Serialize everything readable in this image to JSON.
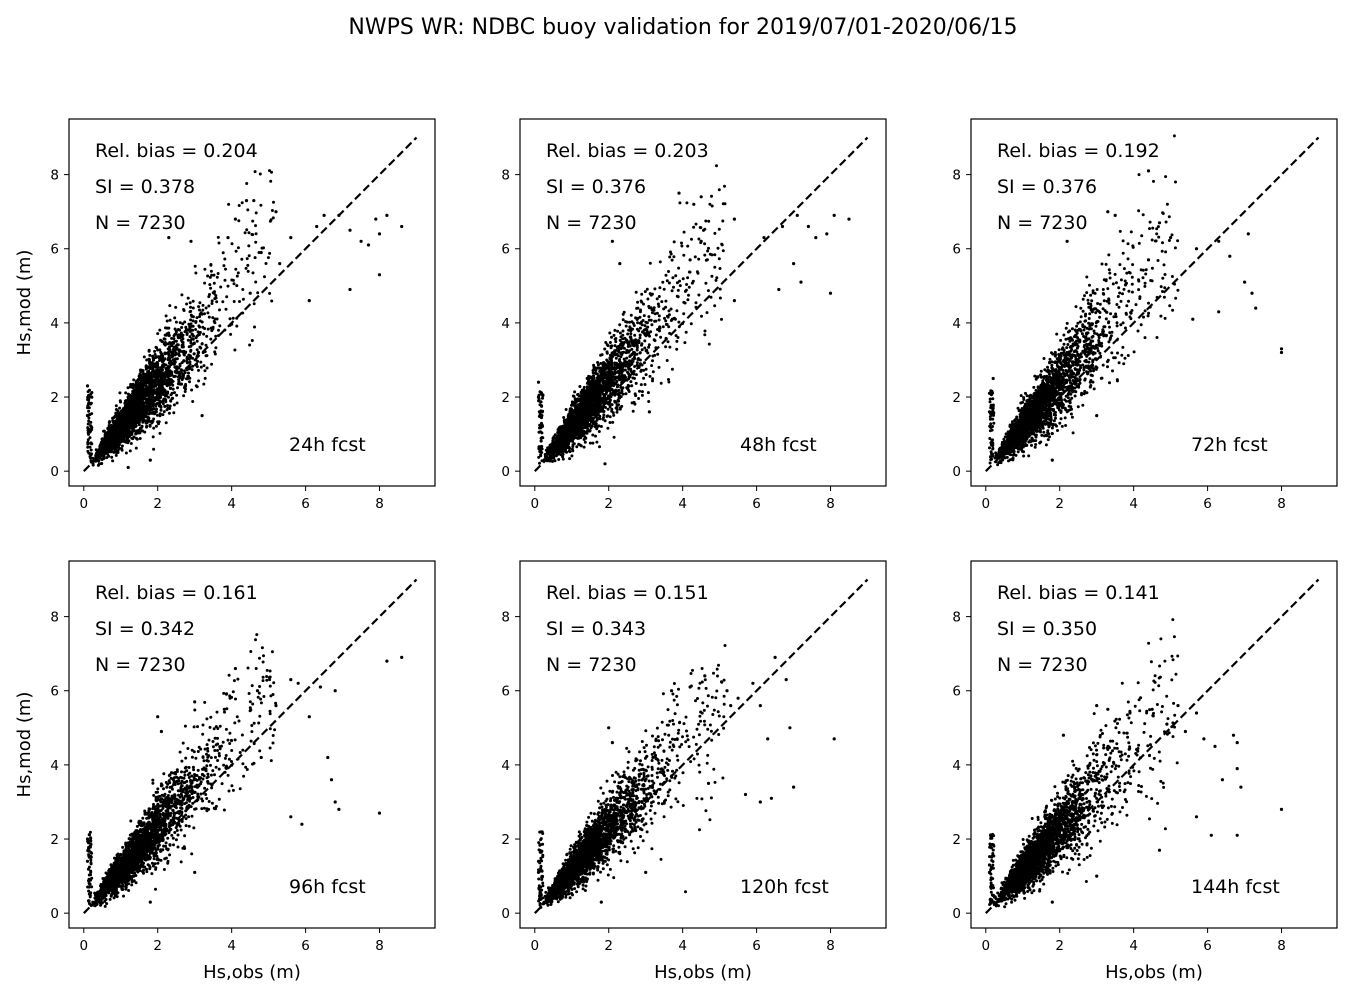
{
  "figure": {
    "title": "NWPS WR: NDBC buoy validation for 2019/07/01-2020/06/15"
  },
  "chart_data": [
    {
      "type": "scatter",
      "panel": "24h fcst",
      "annotations": [
        "Rel. bias =  0.204",
        "SI =  0.378",
        "N = 7230"
      ],
      "label": "24h fcst",
      "xlabel": "",
      "ylabel": "Hs,mod (m)",
      "xlim": [
        -0.4,
        9.5
      ],
      "ylim": [
        -0.4,
        9.5
      ],
      "xticks": [
        0,
        2,
        4,
        6,
        8
      ],
      "yticks": [
        0,
        2,
        4,
        6,
        8
      ],
      "reference_line": {
        "style": "dashed",
        "from": [
          0,
          0
        ],
        "to": [
          9,
          9
        ]
      },
      "rel_bias": 0.204,
      "si": 0.378,
      "n": 7230,
      "sample_points": [
        [
          0.1,
          2.3
        ],
        [
          0.1,
          1.5
        ],
        [
          0.2,
          2.0
        ],
        [
          3.9,
          6.3
        ],
        [
          4.1,
          6.8
        ],
        [
          4.4,
          7.3
        ],
        [
          4.6,
          7.3
        ],
        [
          5.2,
          7.0
        ],
        [
          5.6,
          6.3
        ],
        [
          6.3,
          6.6
        ],
        [
          6.5,
          6.9
        ],
        [
          6.9,
          6.9
        ],
        [
          7.2,
          6.5
        ],
        [
          7.5,
          6.2
        ],
        [
          7.7,
          6.1
        ],
        [
          8.0,
          6.4
        ],
        [
          7.9,
          6.8
        ],
        [
          8.2,
          6.9
        ],
        [
          8.6,
          6.6
        ],
        [
          8.0,
          5.3
        ],
        [
          7.2,
          4.9
        ],
        [
          6.1,
          4.6
        ],
        [
          5.3,
          5.6
        ],
        [
          4.8,
          5.9
        ],
        [
          4.5,
          4.8
        ],
        [
          3.2,
          1.5
        ],
        [
          2.3,
          6.3
        ],
        [
          2.9,
          6.2
        ],
        [
          1.8,
          0.3
        ],
        [
          1.2,
          0.1
        ]
      ],
      "cloud_trend": {
        "slope": 1.2,
        "sigma_frac": 0.34
      }
    },
    {
      "type": "scatter",
      "panel": "48h fcst",
      "annotations": [
        "Rel. bias =  0.203",
        "SI =  0.376",
        "N = 7230"
      ],
      "label": "48h fcst",
      "xlabel": "",
      "ylabel": "",
      "xlim": [
        -0.4,
        9.5
      ],
      "ylim": [
        -0.4,
        9.5
      ],
      "xticks": [
        0,
        2,
        4,
        6,
        8
      ],
      "yticks": [
        0,
        2,
        4,
        6,
        8
      ],
      "reference_line": {
        "style": "dashed",
        "from": [
          0,
          0
        ],
        "to": [
          9,
          9
        ]
      },
      "rel_bias": 0.203,
      "si": 0.376,
      "n": 7230,
      "sample_points": [
        [
          0.1,
          2.0
        ],
        [
          0.2,
          1.6
        ],
        [
          0.1,
          2.4
        ],
        [
          2.1,
          6.2
        ],
        [
          2.3,
          5.6
        ],
        [
          3.9,
          7.5
        ],
        [
          4.3,
          7.2
        ],
        [
          4.5,
          7.4
        ],
        [
          5.4,
          6.8
        ],
        [
          6.2,
          6.3
        ],
        [
          6.7,
          6.6
        ],
        [
          7.1,
          6.9
        ],
        [
          7.4,
          6.6
        ],
        [
          7.6,
          6.3
        ],
        [
          8.1,
          6.9
        ],
        [
          8.5,
          6.8
        ],
        [
          7.9,
          6.4
        ],
        [
          7.0,
          5.6
        ],
        [
          7.2,
          5.1
        ],
        [
          8.0,
          4.8
        ],
        [
          6.6,
          4.9
        ],
        [
          5.4,
          4.6
        ],
        [
          4.2,
          5.7
        ],
        [
          4.5,
          6.2
        ],
        [
          3.1,
          1.6
        ],
        [
          1.9,
          0.2
        ]
      ],
      "cloud_trend": {
        "slope": 1.2,
        "sigma_frac": 0.34
      }
    },
    {
      "type": "scatter",
      "panel": "72h fcst",
      "annotations": [
        "Rel. bias =  0.192",
        "SI =  0.376",
        "N = 7230"
      ],
      "label": "72h fcst",
      "xlabel": "",
      "ylabel": "",
      "xlim": [
        -0.4,
        9.5
      ],
      "ylim": [
        -0.4,
        9.5
      ],
      "xticks": [
        0,
        2,
        4,
        6,
        8
      ],
      "yticks": [
        0,
        2,
        4,
        6,
        8
      ],
      "reference_line": {
        "style": "dashed",
        "from": [
          0,
          0
        ],
        "to": [
          9,
          9
        ]
      },
      "rel_bias": 0.192,
      "si": 0.376,
      "n": 7230,
      "sample_points": [
        [
          0.1,
          2.1
        ],
        [
          0.1,
          1.6
        ],
        [
          0.2,
          2.5
        ],
        [
          2.2,
          6.2
        ],
        [
          3.3,
          7.0
        ],
        [
          3.5,
          6.9
        ],
        [
          4.4,
          8.1
        ],
        [
          4.7,
          6.7
        ],
        [
          5.0,
          6.3
        ],
        [
          5.7,
          6.0
        ],
        [
          6.3,
          6.2
        ],
        [
          6.6,
          5.8
        ],
        [
          7.0,
          5.1
        ],
        [
          7.2,
          4.8
        ],
        [
          7.3,
          4.4
        ],
        [
          7.1,
          6.4
        ],
        [
          8.0,
          3.3
        ],
        [
          8.0,
          3.2
        ],
        [
          6.3,
          4.3
        ],
        [
          5.6,
          4.1
        ],
        [
          4.4,
          5.7
        ],
        [
          3.0,
          1.5
        ],
        [
          1.8,
          0.3
        ]
      ],
      "cloud_trend": {
        "slope": 1.19,
        "sigma_frac": 0.35
      }
    },
    {
      "type": "scatter",
      "panel": "96h fcst",
      "annotations": [
        "Rel. bias =  0.161",
        "SI =  0.342",
        "N = 7230"
      ],
      "label": "96h fcst",
      "xlabel": "Hs,obs (m)",
      "ylabel": "Hs,mod (m)",
      "xlim": [
        -0.4,
        9.5
      ],
      "ylim": [
        -0.4,
        9.5
      ],
      "xticks": [
        0,
        2,
        4,
        6,
        8
      ],
      "yticks": [
        0,
        2,
        4,
        6,
        8
      ],
      "reference_line": {
        "style": "dashed",
        "from": [
          0,
          0
        ],
        "to": [
          9,
          9
        ]
      },
      "rel_bias": 0.161,
      "si": 0.342,
      "n": 7230,
      "sample_points": [
        [
          0.1,
          2.0
        ],
        [
          0.1,
          1.4
        ],
        [
          2.0,
          5.3
        ],
        [
          2.1,
          4.9
        ],
        [
          3.0,
          5.7
        ],
        [
          3.8,
          5.5
        ],
        [
          4.1,
          6.6
        ],
        [
          4.7,
          6.0
        ],
        [
          5.2,
          5.6
        ],
        [
          5.6,
          6.3
        ],
        [
          5.8,
          6.2
        ],
        [
          6.1,
          5.3
        ],
        [
          6.4,
          6.1
        ],
        [
          6.8,
          6.0
        ],
        [
          6.6,
          4.2
        ],
        [
          6.7,
          3.6
        ],
        [
          6.8,
          3.0
        ],
        [
          6.9,
          2.8
        ],
        [
          5.6,
          2.6
        ],
        [
          5.9,
          2.4
        ],
        [
          8.0,
          2.7
        ],
        [
          8.6,
          6.9
        ],
        [
          8.2,
          6.8
        ],
        [
          4.8,
          4.2
        ],
        [
          3.0,
          1.1
        ],
        [
          1.8,
          0.3
        ]
      ],
      "cloud_trend": {
        "slope": 1.16,
        "sigma_frac": 0.32
      }
    },
    {
      "type": "scatter",
      "panel": "120h fcst",
      "annotations": [
        "Rel. bias =  0.151",
        "SI =  0.343",
        "N = 7230"
      ],
      "label": "120h fcst",
      "xlabel": "Hs,obs (m)",
      "ylabel": "",
      "xlim": [
        -0.4,
        9.5
      ],
      "ylim": [
        -0.4,
        9.5
      ],
      "xticks": [
        0,
        2,
        4,
        6,
        8
      ],
      "yticks": [
        0,
        2,
        4,
        6,
        8
      ],
      "reference_line": {
        "style": "dashed",
        "from": [
          0,
          0
        ],
        "to": [
          9,
          9
        ]
      },
      "rel_bias": 0.151,
      "si": 0.343,
      "n": 7230,
      "sample_points": [
        [
          0.1,
          1.4
        ],
        [
          0.1,
          1.1
        ],
        [
          2.0,
          5.0
        ],
        [
          2.1,
          4.6
        ],
        [
          3.7,
          6.0
        ],
        [
          4.2,
          6.1
        ],
        [
          4.6,
          6.4
        ],
        [
          5.2,
          6.0
        ],
        [
          5.3,
          5.6
        ],
        [
          5.5,
          5.8
        ],
        [
          5.9,
          6.2
        ],
        [
          6.1,
          5.6
        ],
        [
          6.3,
          4.7
        ],
        [
          6.5,
          6.9
        ],
        [
          6.8,
          6.3
        ],
        [
          6.9,
          5.0
        ],
        [
          7.0,
          3.4
        ],
        [
          6.4,
          3.1
        ],
        [
          6.1,
          3.0
        ],
        [
          5.7,
          3.2
        ],
        [
          8.1,
          4.7
        ],
        [
          4.7,
          3.5
        ],
        [
          3.0,
          1.1
        ],
        [
          1.8,
          0.3
        ]
      ],
      "cloud_trend": {
        "slope": 1.15,
        "sigma_frac": 0.32
      }
    },
    {
      "type": "scatter",
      "panel": "144h fcst",
      "annotations": [
        "Rel. bias =  0.141",
        "SI =  0.350",
        "N = 7230"
      ],
      "label": "144h fcst",
      "xlabel": "Hs,obs (m)",
      "ylabel": "",
      "xlim": [
        -0.4,
        9.5
      ],
      "ylim": [
        -0.4,
        9.5
      ],
      "xticks": [
        0,
        2,
        4,
        6,
        8
      ],
      "yticks": [
        0,
        2,
        4,
        6,
        8
      ],
      "reference_line": {
        "style": "dashed",
        "from": [
          0,
          0
        ],
        "to": [
          9,
          9
        ]
      },
      "rel_bias": 0.141,
      "si": 0.35,
      "n": 7230,
      "sample_points": [
        [
          0.1,
          1.3
        ],
        [
          0.1,
          1.1
        ],
        [
          2.1,
          4.8
        ],
        [
          3.0,
          5.6
        ],
        [
          3.3,
          5.5
        ],
        [
          3.9,
          5.4
        ],
        [
          4.5,
          5.5
        ],
        [
          4.9,
          5.1
        ],
        [
          5.2,
          5.6
        ],
        [
          5.4,
          4.9
        ],
        [
          5.7,
          5.4
        ],
        [
          5.9,
          4.7
        ],
        [
          6.2,
          4.5
        ],
        [
          6.4,
          3.6
        ],
        [
          6.7,
          4.8
        ],
        [
          6.8,
          4.6
        ],
        [
          6.8,
          3.9
        ],
        [
          6.9,
          3.4
        ],
        [
          6.8,
          2.1
        ],
        [
          6.1,
          2.1
        ],
        [
          5.7,
          2.6
        ],
        [
          8.0,
          2.8
        ],
        [
          4.7,
          1.7
        ],
        [
          3.0,
          1.0
        ],
        [
          1.8,
          0.3
        ]
      ],
      "cloud_trend": {
        "slope": 1.14,
        "sigma_frac": 0.33
      }
    }
  ]
}
